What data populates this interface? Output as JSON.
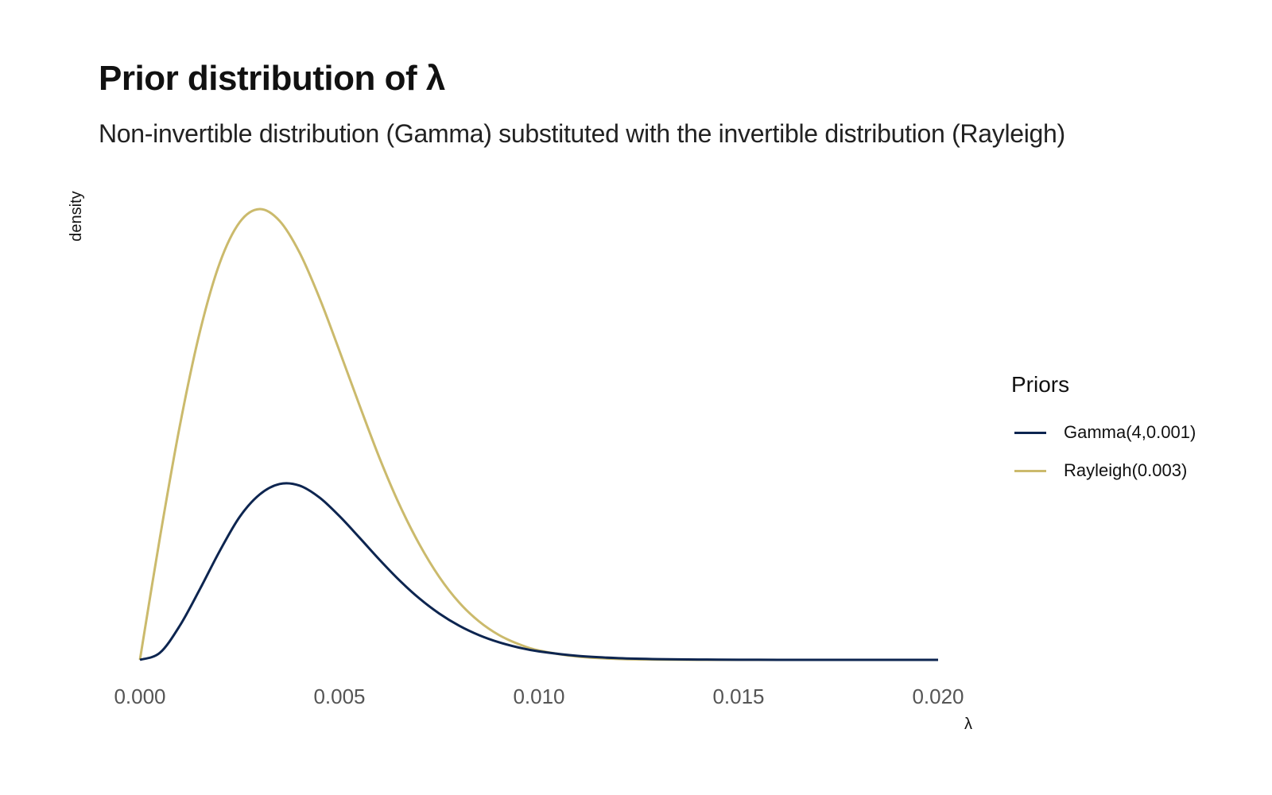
{
  "chart_data": {
    "type": "line",
    "title": "Prior distribution of λ",
    "subtitle": "Non-invertible distribution (Gamma) substituted with the invertible distribution (Rayleigh)",
    "xlabel": "λ",
    "ylabel": "density",
    "xlim": [
      0,
      0.02
    ],
    "x_ticks": [
      "0.000",
      "0.005",
      "0.010",
      "0.015",
      "0.020"
    ],
    "y_ticks": [],
    "grid": false,
    "legend": {
      "title": "Priors",
      "placement": "right"
    },
    "x": [
      0,
      0.0005,
      0.001,
      0.0015,
      0.002,
      0.0025,
      0.003,
      0.0035,
      0.004,
      0.0045,
      0.005,
      0.0055,
      0.006,
      0.0065,
      0.007,
      0.0075,
      0.008,
      0.0085,
      0.009,
      0.0095,
      0.01,
      0.011,
      0.012,
      0.013,
      0.014,
      0.015,
      0.016,
      0.017,
      0.018,
      0.019,
      0.02
    ],
    "series": [
      {
        "name": "Gamma(4,0.001)",
        "color": "#0d2550",
        "values": [
          0,
          3.16,
          15.33,
          31.62,
          48.84,
          64.16,
          74.18,
          78.88,
          78.16,
          72.8,
          64.47,
          54.85,
          44.99,
          35.73,
          27.59,
          20.79,
          15.32,
          11.07,
          7.86,
          5.49,
          3.78,
          1.72,
          0.76,
          0.32,
          0.14,
          0.05,
          0.02,
          0.01,
          0,
          0,
          0
        ]
      },
      {
        "name": "Rayleigh(0.003)",
        "color": "#cbba6c",
        "values": [
          0,
          54.7,
          105.0,
          147.0,
          178.0,
          196.3,
          202.2,
          196.9,
          182.7,
          162.3,
          138.6,
          114.3,
          90.7,
          69.7,
          51.9,
          37.2,
          25.7,
          17.2,
          11.1,
          7.0,
          4.2,
          1.4,
          0.4,
          0.1,
          0,
          0,
          0,
          0,
          0,
          0,
          0
        ]
      }
    ]
  }
}
